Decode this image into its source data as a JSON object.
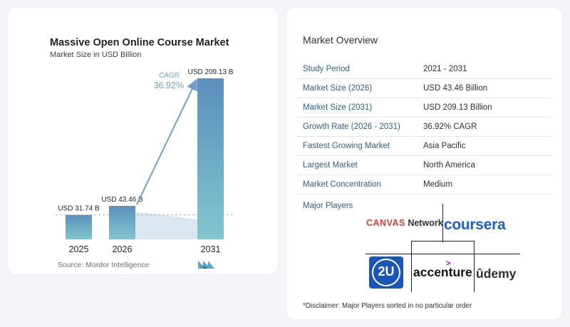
{
  "chart_data": {
    "type": "bar",
    "title": "Massive Open Online Course Market",
    "subtitle": "Market Size in USD Billion",
    "categories": [
      "2025",
      "2026",
      "2031"
    ],
    "values": [
      31.74,
      43.46,
      209.13
    ],
    "value_labels": [
      "USD 31.74 B",
      "USD 43.46 B",
      "USD 209.13 B"
    ],
    "cagr_label": "CAGR",
    "cagr_value": "36.92%",
    "colors": {
      "bar_top": "#5b8fbd",
      "bar_bottom": "#82c6cf",
      "shade": "#dbe6ef",
      "arrow": "#6ea1c8",
      "cagr": "#6d9fc6"
    },
    "grid": false,
    "legend": "none"
  },
  "source": "Source: Mordor Intelligence",
  "overview": {
    "title": "Market Overview",
    "rows": [
      {
        "key": "Study Period",
        "value": "2021 - 2031"
      },
      {
        "key": "Market Size (2026)",
        "value": "USD 43.46 Billion"
      },
      {
        "key": "Market Size (2031)",
        "value": "USD 209.13 Billion"
      },
      {
        "key": "Growth Rate (2026 - 2031)",
        "value": "36.92% CAGR"
      },
      {
        "key": "Fastest Growing Market",
        "value": "Asia Pacific"
      },
      {
        "key": "Largest Market",
        "value": "North America"
      },
      {
        "key": "Market Concentration",
        "value": "Medium"
      }
    ]
  },
  "players": {
    "title": "Major Players",
    "canvas_a": "CANVAS",
    "canvas_b": " Network",
    "coursera": "coursera",
    "twou": "2U",
    "accenture": "accenture",
    "accenture_mark": ">",
    "udemy": "ûdemy"
  },
  "disclaimer": "*Disclaimer: Major Players sorted in no particular order"
}
